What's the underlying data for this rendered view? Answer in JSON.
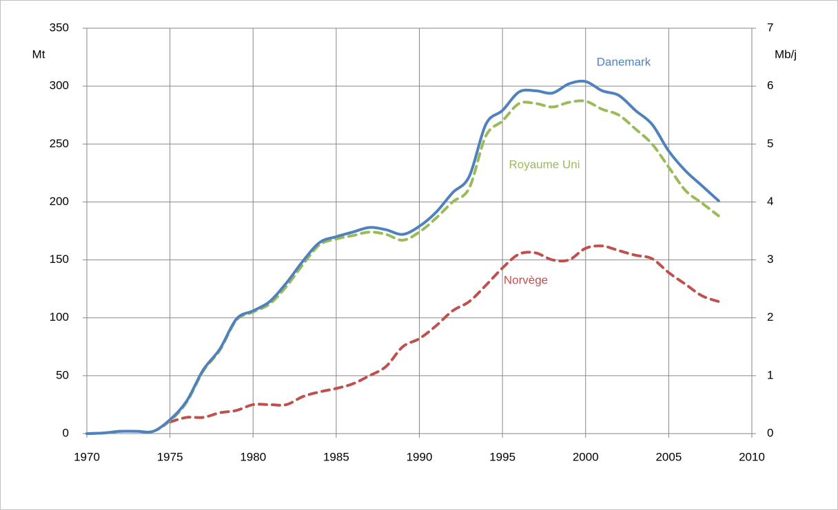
{
  "chart_data": {
    "type": "line",
    "x": [
      1970,
      1971,
      1972,
      1973,
      1974,
      1975,
      1976,
      1977,
      1978,
      1979,
      1980,
      1981,
      1982,
      1983,
      1984,
      1985,
      1986,
      1987,
      1988,
      1989,
      1990,
      1991,
      1992,
      1993,
      1994,
      1995,
      1996,
      1997,
      1998,
      1999,
      2000,
      2001,
      2002,
      2003,
      2004,
      2005,
      2006,
      2007,
      2008
    ],
    "series": [
      {
        "name": "Danemark",
        "color": "#4f81bd",
        "dash": false,
        "values": [
          0,
          0.5,
          2,
          2,
          2,
          12,
          28,
          55,
          73,
          99,
          106,
          114,
          130,
          149,
          165,
          170,
          174,
          178,
          176,
          172,
          179,
          191,
          208,
          222,
          267,
          279,
          295,
          296,
          294,
          302,
          304,
          296,
          292,
          279,
          267,
          244,
          227,
          214,
          201
        ]
      },
      {
        "name": "Royaume Uni",
        "color": "#9bbb59",
        "dash": true,
        "values": [
          0,
          0.5,
          2,
          2,
          2,
          11,
          27,
          54,
          72,
          98,
          105,
          112,
          127,
          146,
          163,
          168,
          171,
          174,
          172,
          167,
          174,
          186,
          200,
          212,
          257,
          270,
          285,
          285,
          282,
          286,
          287,
          280,
          275,
          263,
          250,
          230,
          210,
          199,
          188
        ]
      },
      {
        "name": "Norvège",
        "color": "#c0504d",
        "dash": true,
        "values": [
          null,
          null,
          null,
          null,
          null,
          10,
          14,
          14,
          18,
          20,
          25,
          25,
          25,
          32,
          36,
          39,
          43,
          50,
          58,
          75,
          82,
          93,
          106,
          114,
          128,
          143,
          155,
          156,
          150,
          150,
          160,
          162,
          158,
          154,
          151,
          139,
          129,
          119,
          114
        ]
      }
    ],
    "ylabel": "Mt",
    "y2label": "Mb/j",
    "xlim": [
      1970,
      2010
    ],
    "xticks": [
      1970,
      1975,
      1980,
      1985,
      1990,
      1995,
      2000,
      2005,
      2010
    ],
    "ylim": [
      0,
      350
    ],
    "yticks": [
      0,
      50,
      100,
      150,
      200,
      250,
      300,
      350
    ],
    "y2lim": [
      0,
      7
    ],
    "y2ticks": [
      0,
      1,
      2,
      3,
      4,
      5,
      6,
      7
    ],
    "grid": true
  }
}
